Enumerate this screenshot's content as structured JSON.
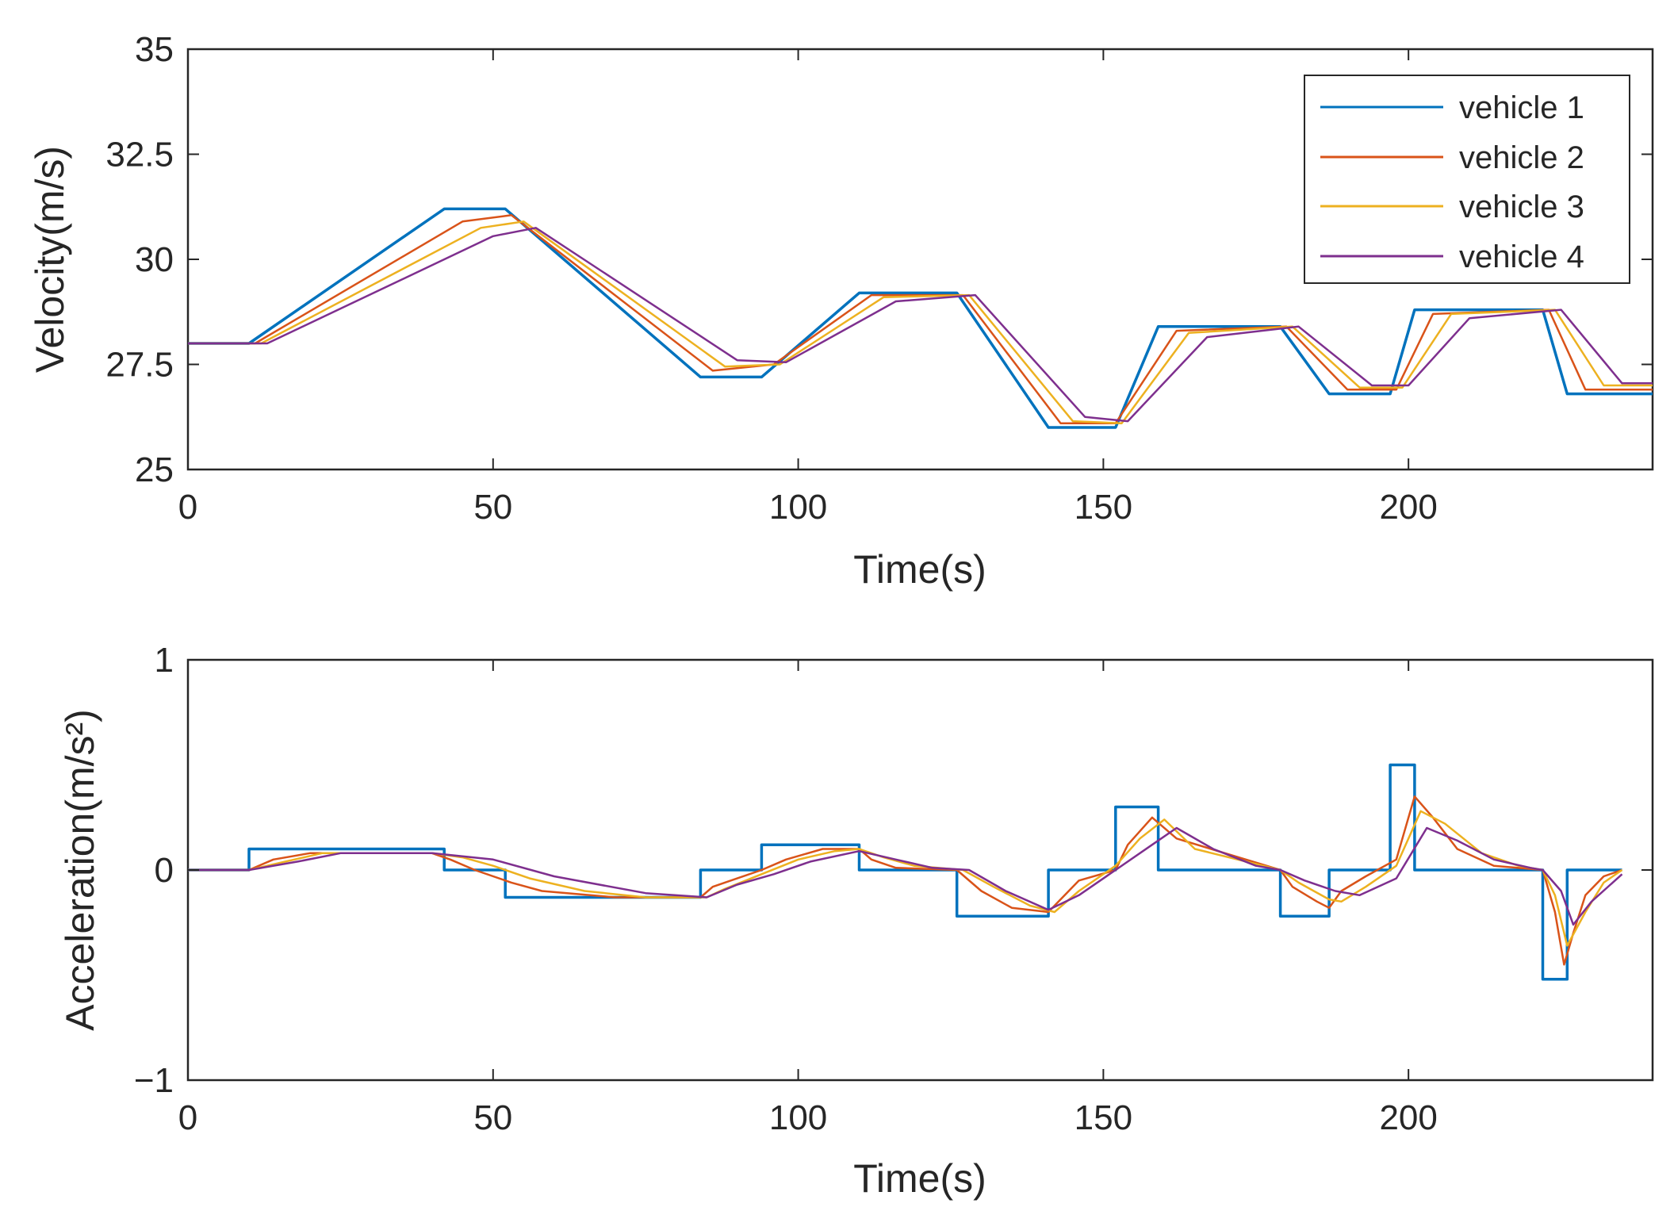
{
  "chart_data": [
    {
      "type": "line",
      "title": "",
      "xlabel": "Time(s)",
      "ylabel": "Velocity(m/s)",
      "xlim": [
        0,
        240
      ],
      "ylim": [
        25,
        35
      ],
      "xticks": [
        0,
        50,
        100,
        150,
        200
      ],
      "yticks": [
        25,
        27.5,
        30,
        32.5,
        35
      ],
      "xtick_labels": [
        "0",
        "50",
        "100",
        "150",
        "200"
      ],
      "ytick_labels": [
        "25",
        "27.5",
        "30",
        "32.5",
        "35"
      ],
      "grid": false,
      "legend": {
        "placement": "top-right",
        "entries": [
          "vehicle 1",
          "vehicle 2",
          "vehicle 3",
          "vehicle 4"
        ]
      },
      "series": [
        {
          "name": "vehicle 1",
          "color": "#0072BD",
          "x": [
            0,
            10,
            42,
            52,
            84,
            94,
            110,
            126,
            141,
            152,
            159,
            179,
            187,
            197,
            201,
            222,
            226,
            240
          ],
          "y": [
            28,
            28,
            31.2,
            31.2,
            27.2,
            27.2,
            29.2,
            29.2,
            26.0,
            26.0,
            28.4,
            28.4,
            26.8,
            26.8,
            28.8,
            28.8,
            26.8,
            26.8
          ]
        },
        {
          "name": "vehicle 2",
          "color": "#D95319",
          "x": [
            0,
            11,
            45,
            53,
            86,
            96,
            112,
            127,
            143,
            152,
            162,
            180,
            190,
            198,
            204,
            223,
            229,
            240
          ],
          "y": [
            28,
            28,
            30.9,
            31.05,
            27.35,
            27.5,
            29.15,
            29.15,
            26.1,
            26.1,
            28.3,
            28.4,
            26.9,
            26.9,
            28.7,
            28.8,
            26.9,
            26.9
          ]
        },
        {
          "name": "vehicle 3",
          "color": "#EDB120",
          "x": [
            0,
            12,
            48,
            55,
            88,
            97,
            114,
            128,
            145,
            153,
            164,
            181,
            192,
            199,
            207,
            224,
            232,
            240
          ],
          "y": [
            28,
            28,
            30.75,
            30.9,
            27.45,
            27.5,
            29.1,
            29.15,
            26.15,
            26.1,
            28.25,
            28.4,
            26.95,
            26.95,
            28.7,
            28.8,
            27.0,
            27.0
          ]
        },
        {
          "name": "vehicle 4",
          "color": "#7E2F8E",
          "x": [
            0,
            13,
            50,
            57,
            90,
            98,
            116,
            129,
            147,
            154,
            167,
            182,
            194,
            200,
            210,
            225,
            235,
            240
          ],
          "y": [
            28,
            28,
            30.55,
            30.75,
            27.6,
            27.55,
            29.0,
            29.15,
            26.25,
            26.15,
            28.15,
            28.4,
            27.0,
            27.0,
            28.6,
            28.8,
            27.05,
            27.05
          ]
        }
      ]
    },
    {
      "type": "line",
      "title": "",
      "xlabel": "Time(s)",
      "ylabel": "Acceleration(m/s²)",
      "xlim": [
        0,
        240
      ],
      "ylim": [
        -1,
        1
      ],
      "xticks": [
        0,
        50,
        100,
        150,
        200
      ],
      "yticks": [
        -1,
        0,
        1
      ],
      "xtick_labels": [
        "0",
        "50",
        "100",
        "150",
        "200"
      ],
      "ytick_labels": [
        "−1",
        "0",
        "1"
      ],
      "grid": false,
      "series": [
        {
          "name": "vehicle 1",
          "color": "#0072BD",
          "x": [
            0,
            10,
            10,
            42,
            42,
            52,
            52,
            84,
            84,
            94,
            94,
            110,
            110,
            126,
            126,
            141,
            141,
            152,
            152,
            159,
            159,
            179,
            179,
            187,
            187,
            197,
            197,
            201,
            201,
            222,
            222,
            226,
            226,
            235
          ],
          "y": [
            0,
            0,
            0.1,
            0.1,
            0,
            0,
            -0.13,
            -0.13,
            0,
            0,
            0.12,
            0.12,
            0,
            0,
            -0.22,
            -0.22,
            0,
            0,
            0.3,
            0.3,
            0,
            0,
            -0.22,
            -0.22,
            0,
            0,
            0.5,
            0.5,
            0,
            0,
            -0.52,
            -0.52,
            0,
            0
          ]
        },
        {
          "name": "vehicle 2",
          "color": "#D95319",
          "x": [
            0,
            10,
            14,
            20,
            40,
            43,
            47,
            53,
            58,
            70,
            84,
            86,
            90,
            94,
            98,
            104,
            110,
            112,
            116,
            126,
            130,
            135,
            141,
            142,
            146,
            152,
            154,
            158,
            162,
            179,
            181,
            185,
            187,
            189,
            193,
            198,
            201,
            204,
            208,
            214,
            222,
            224,
            225.5,
            227,
            229,
            232,
            235
          ],
          "y": [
            0,
            0,
            0.05,
            0.08,
            0.08,
            0.05,
            0.0,
            -0.06,
            -0.1,
            -0.13,
            -0.13,
            -0.08,
            -0.04,
            0.0,
            0.05,
            0.1,
            0.1,
            0.05,
            0.01,
            0.0,
            -0.1,
            -0.18,
            -0.2,
            -0.17,
            -0.05,
            0.0,
            0.12,
            0.25,
            0.15,
            0.0,
            -0.08,
            -0.15,
            -0.18,
            -0.1,
            -0.03,
            0.05,
            0.35,
            0.25,
            0.1,
            0.02,
            0.0,
            -0.2,
            -0.45,
            -0.3,
            -0.12,
            -0.03,
            0.0
          ]
        },
        {
          "name": "vehicle 3",
          "color": "#EDB120",
          "x": [
            0,
            10,
            16,
            22,
            40,
            45,
            50,
            56,
            65,
            75,
            85,
            88,
            94,
            100,
            106,
            110,
            114,
            119,
            127,
            132,
            138,
            142,
            146,
            152,
            156,
            160,
            165,
            179,
            182,
            187,
            189,
            193,
            198,
            202,
            206,
            212,
            218,
            222,
            224,
            226,
            229,
            232,
            235
          ],
          "y": [
            0,
            0,
            0.04,
            0.08,
            0.08,
            0.06,
            0.02,
            -0.04,
            -0.1,
            -0.13,
            -0.13,
            -0.09,
            -0.02,
            0.05,
            0.09,
            0.1,
            0.06,
            0.02,
            0.0,
            -0.08,
            -0.17,
            -0.2,
            -0.1,
            0.02,
            0.15,
            0.24,
            0.1,
            0.0,
            -0.06,
            -0.14,
            -0.15,
            -0.08,
            0.02,
            0.28,
            0.22,
            0.08,
            0.02,
            0.0,
            -0.12,
            -0.36,
            -0.2,
            -0.06,
            0.0
          ]
        },
        {
          "name": "vehicle 4",
          "color": "#7E2F8E",
          "x": [
            0,
            10,
            18,
            25,
            40,
            50,
            60,
            75,
            85,
            90,
            96,
            102,
            110,
            116,
            122,
            128,
            134,
            141,
            146,
            152,
            158,
            162,
            168,
            175,
            179,
            183,
            188,
            192,
            198,
            203,
            208,
            214,
            220,
            222,
            225,
            227,
            230,
            235
          ],
          "y": [
            0,
            0,
            0.04,
            0.08,
            0.08,
            0.05,
            -0.03,
            -0.11,
            -0.13,
            -0.07,
            -0.02,
            0.04,
            0.09,
            0.05,
            0.01,
            0.0,
            -0.1,
            -0.19,
            -0.12,
            0.0,
            0.12,
            0.2,
            0.1,
            0.02,
            0.0,
            -0.05,
            -0.1,
            -0.12,
            -0.04,
            0.2,
            0.14,
            0.05,
            0.01,
            0.0,
            -0.1,
            -0.26,
            -0.15,
            -0.02
          ]
        }
      ]
    }
  ]
}
